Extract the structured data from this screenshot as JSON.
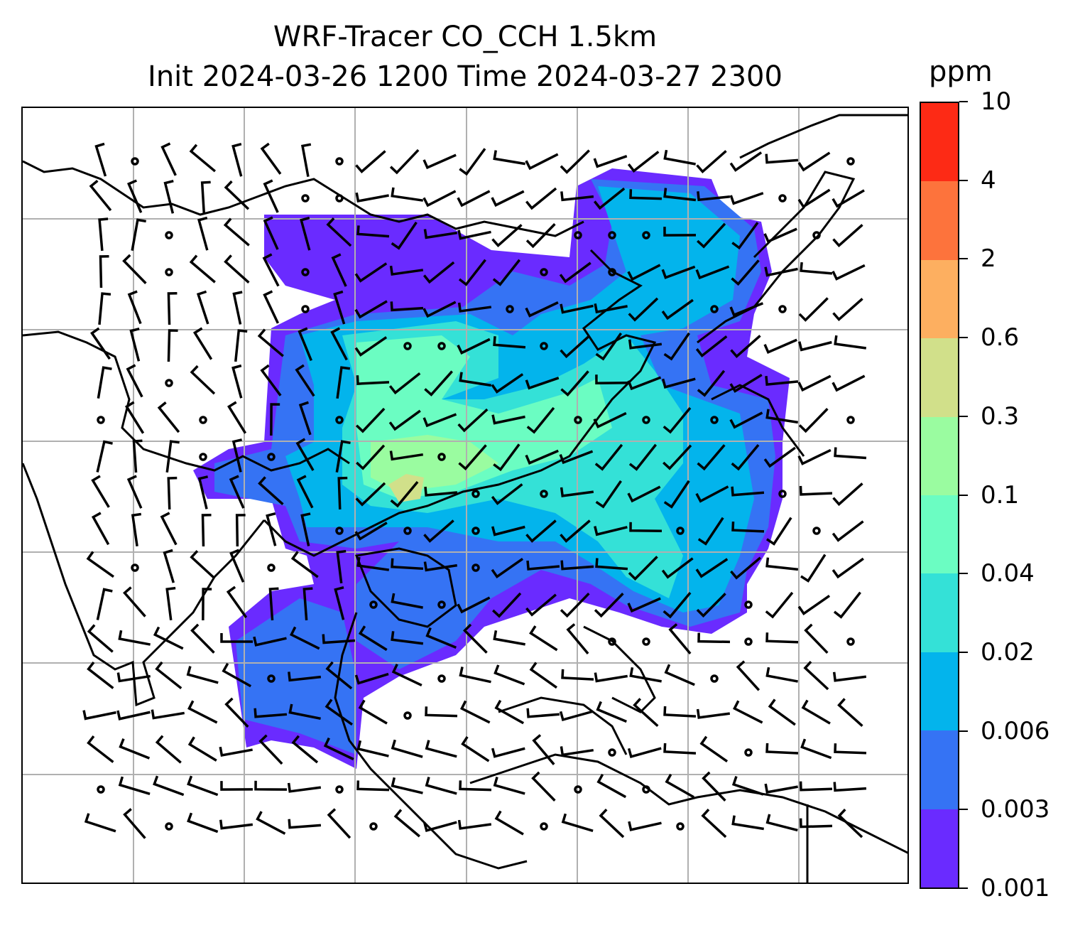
{
  "title_line1": "WRF-Tracer CO_CCH 1.5km",
  "title_line2": "Init 2024-03-26 1200 Time 2024-03-27 2300",
  "colorbar": {
    "units": "ppm",
    "ticks": [
      "0.001",
      "0.003",
      "0.006",
      "0.02",
      "0.04",
      "0.1",
      "0.3",
      "0.6",
      "2",
      "4",
      "10"
    ],
    "colors": [
      "#6a2bff",
      "#3573f4",
      "#03b4ec",
      "#34e1d7",
      "#6bfdc2",
      "#9afca0",
      "#d1e08a",
      "#fdaf60",
      "#fd733c",
      "#fd2a15"
    ]
  },
  "map": {
    "grid_color": "#b0b0b0",
    "coastline_color": "#000000"
  }
}
